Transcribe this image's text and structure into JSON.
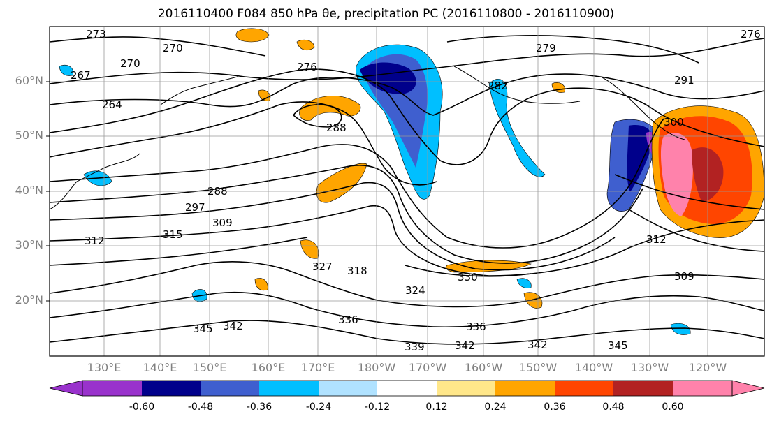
{
  "title": "2016110400 F084 850 hPa θe, precipitation PC (2016110800 - 2016110900)",
  "map": {
    "variable": "850 hPa theta-e contours with precipitation principal component shading",
    "lat_ticks": [
      "60°N",
      "50°N",
      "40°N",
      "30°N",
      "20°N"
    ],
    "lon_ticks": [
      "130°E",
      "140°E",
      "150°E",
      "160°E",
      "170°E",
      "180°W",
      "170°W",
      "160°W",
      "150°W",
      "140°W",
      "130°W",
      "120°W"
    ],
    "contour_labels": [
      "273",
      "270",
      "270",
      "267",
      "264",
      "276",
      "279",
      "282",
      "288",
      "288",
      "297",
      "309",
      "315",
      "312",
      "327",
      "318",
      "324",
      "330",
      "336",
      "336",
      "342",
      "339",
      "342",
      "342",
      "345",
      "345",
      "309",
      "312",
      "291",
      "300",
      "276"
    ]
  },
  "colorbar": {
    "levels": [
      "-0.60",
      "-0.48",
      "-0.36",
      "-0.24",
      "-0.12",
      "0.12",
      "0.24",
      "0.36",
      "0.48",
      "0.60"
    ],
    "colors": [
      "#9932cc",
      "#00008b",
      "#3f5fcf",
      "#00bfff",
      "#b0e2ff",
      "#ffffff",
      "#ffe78a",
      "#ffa500",
      "#ff4500",
      "#b22222",
      "#ff82ab"
    ]
  }
}
